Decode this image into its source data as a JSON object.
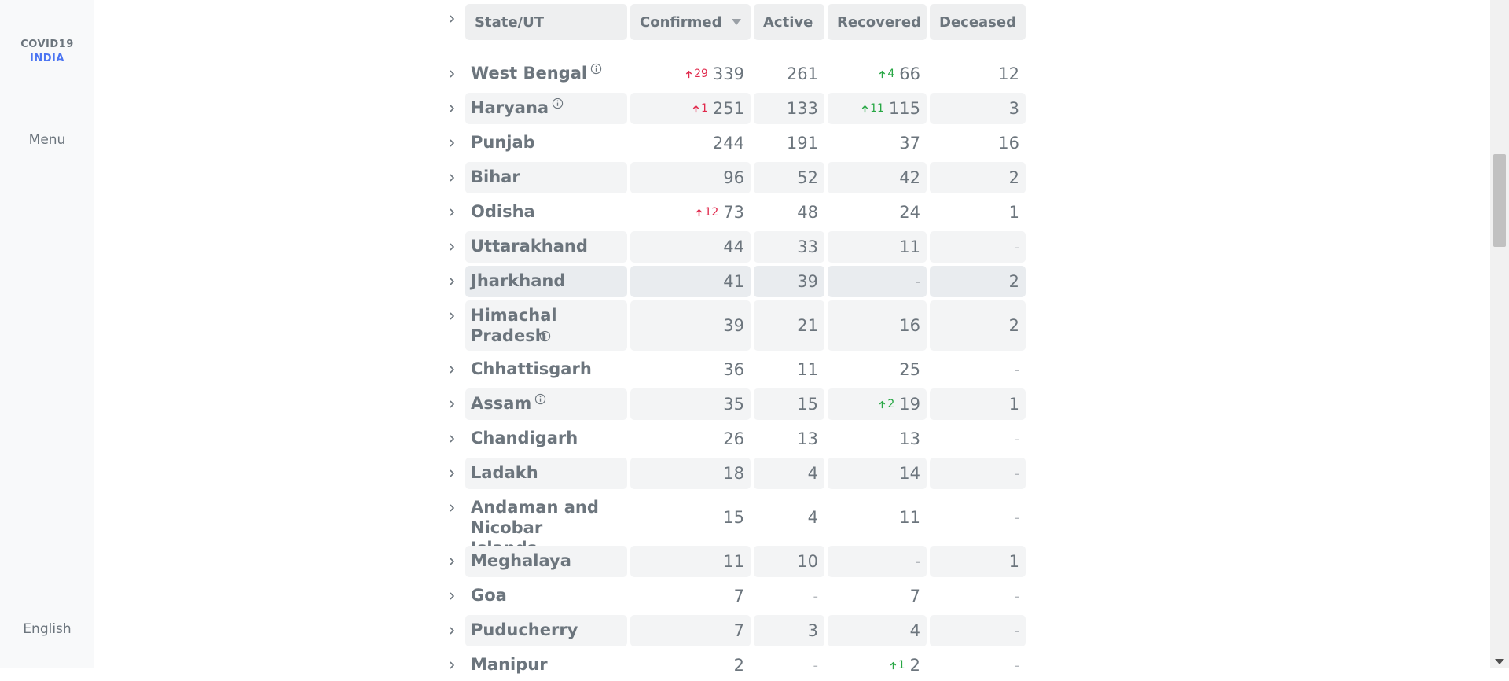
{
  "sidebar": {
    "logo_line1": "COVID19",
    "logo_line2": "INDIA",
    "menu_label": "Menu",
    "language_label": "English"
  },
  "table": {
    "headers": {
      "state": "State/UT",
      "confirmed": "Confirmed",
      "active": "Active",
      "recovered": "Recovered",
      "deceased": "Deceased"
    },
    "rows": [
      {
        "state": "West Bengal",
        "info": true,
        "confirmed_delta": "29",
        "confirmed": "339",
        "active": "261",
        "recovered_delta": "4",
        "recovered": "66",
        "deceased": "12"
      },
      {
        "state": "Haryana",
        "info": true,
        "confirmed_delta": "1",
        "confirmed": "251",
        "active": "133",
        "recovered_delta": "11",
        "recovered": "115",
        "deceased": "3"
      },
      {
        "state": "Punjab",
        "info": false,
        "confirmed_delta": "",
        "confirmed": "244",
        "active": "191",
        "recovered_delta": "",
        "recovered": "37",
        "deceased": "16"
      },
      {
        "state": "Bihar",
        "info": false,
        "confirmed_delta": "",
        "confirmed": "96",
        "active": "52",
        "recovered_delta": "",
        "recovered": "42",
        "deceased": "2"
      },
      {
        "state": "Odisha",
        "info": false,
        "confirmed_delta": "12",
        "confirmed": "73",
        "active": "48",
        "recovered_delta": "",
        "recovered": "24",
        "deceased": "1"
      },
      {
        "state": "Uttarakhand",
        "info": false,
        "confirmed_delta": "",
        "confirmed": "44",
        "active": "33",
        "recovered_delta": "",
        "recovered": "11",
        "deceased": "-"
      },
      {
        "state": "Jharkhand",
        "info": false,
        "confirmed_delta": "",
        "confirmed": "41",
        "active": "39",
        "recovered_delta": "",
        "recovered": "-",
        "deceased": "2"
      },
      {
        "state": "Himachal Pradesh",
        "info": true,
        "confirmed_delta": "",
        "confirmed": "39",
        "active": "21",
        "recovered_delta": "",
        "recovered": "16",
        "deceased": "2"
      },
      {
        "state": "Chhattisgarh",
        "info": false,
        "confirmed_delta": "",
        "confirmed": "36",
        "active": "11",
        "recovered_delta": "",
        "recovered": "25",
        "deceased": "-"
      },
      {
        "state": "Assam",
        "info": true,
        "confirmed_delta": "",
        "confirmed": "35",
        "active": "15",
        "recovered_delta": "2",
        "recovered": "19",
        "deceased": "1"
      },
      {
        "state": "Chandigarh",
        "info": false,
        "confirmed_delta": "",
        "confirmed": "26",
        "active": "13",
        "recovered_delta": "",
        "recovered": "13",
        "deceased": "-"
      },
      {
        "state": "Ladakh",
        "info": false,
        "confirmed_delta": "",
        "confirmed": "18",
        "active": "4",
        "recovered_delta": "",
        "recovered": "14",
        "deceased": "-"
      },
      {
        "state": "Andaman and Nicobar Islands",
        "info": false,
        "confirmed_delta": "",
        "confirmed": "15",
        "active": "4",
        "recovered_delta": "",
        "recovered": "11",
        "deceased": "-"
      },
      {
        "state": "Meghalaya",
        "info": false,
        "confirmed_delta": "",
        "confirmed": "11",
        "active": "10",
        "recovered_delta": "",
        "recovered": "-",
        "deceased": "1"
      },
      {
        "state": "Goa",
        "info": false,
        "confirmed_delta": "",
        "confirmed": "7",
        "active": "-",
        "recovered_delta": "",
        "recovered": "7",
        "deceased": "-"
      },
      {
        "state": "Puducherry",
        "info": false,
        "confirmed_delta": "",
        "confirmed": "7",
        "active": "3",
        "recovered_delta": "",
        "recovered": "4",
        "deceased": "-"
      },
      {
        "state": "Manipur",
        "info": false,
        "confirmed_delta": "",
        "confirmed": "2",
        "active": "-",
        "recovered_delta": "1",
        "recovered": "2",
        "deceased": "-"
      }
    ]
  },
  "colors": {
    "accent": "#4c75f2",
    "increase_confirmed": "#e0294c",
    "increase_recovered": "#28a745",
    "text": "#6c757d"
  }
}
